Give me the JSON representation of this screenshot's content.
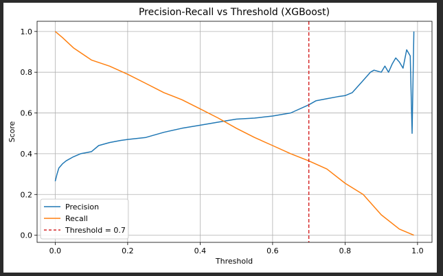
{
  "chart_data": {
    "type": "line",
    "title": "Precision-Recall vs Threshold (XGBoost)",
    "xlabel": "Threshold",
    "ylabel": "Score",
    "xlim": [
      -0.05,
      1.04
    ],
    "ylim": [
      -0.035,
      1.05
    ],
    "x_ticks": [
      0.0,
      0.2,
      0.4,
      0.6,
      0.8,
      1.0
    ],
    "x_tick_labels": [
      "0.0",
      "0.2",
      "0.4",
      "0.6",
      "0.8",
      "1.0"
    ],
    "y_ticks": [
      0.0,
      0.2,
      0.4,
      0.6,
      0.8,
      1.0
    ],
    "y_tick_labels": [
      "0.0",
      "0.2",
      "0.4",
      "0.6",
      "0.8",
      "1.0"
    ],
    "grid": true,
    "legend_position": "lower-left",
    "series": [
      {
        "name": "Precision",
        "color": "#1f77b4",
        "x": [
          0.0,
          0.005,
          0.01,
          0.02,
          0.03,
          0.05,
          0.07,
          0.1,
          0.12,
          0.15,
          0.18,
          0.2,
          0.25,
          0.3,
          0.35,
          0.4,
          0.45,
          0.5,
          0.55,
          0.6,
          0.65,
          0.7,
          0.72,
          0.75,
          0.78,
          0.8,
          0.82,
          0.85,
          0.87,
          0.88,
          0.9,
          0.91,
          0.92,
          0.93,
          0.94,
          0.95,
          0.96,
          0.97,
          0.98,
          0.985,
          0.99
        ],
        "y": [
          0.265,
          0.3,
          0.33,
          0.35,
          0.365,
          0.385,
          0.4,
          0.41,
          0.44,
          0.455,
          0.465,
          0.47,
          0.48,
          0.505,
          0.525,
          0.54,
          0.555,
          0.57,
          0.575,
          0.585,
          0.6,
          0.64,
          0.66,
          0.67,
          0.68,
          0.685,
          0.7,
          0.76,
          0.8,
          0.81,
          0.8,
          0.83,
          0.8,
          0.84,
          0.87,
          0.85,
          0.82,
          0.91,
          0.88,
          0.5,
          1.0
        ]
      },
      {
        "name": "Recall",
        "color": "#ff7f0e",
        "x": [
          0.0,
          0.02,
          0.05,
          0.1,
          0.15,
          0.2,
          0.25,
          0.3,
          0.35,
          0.4,
          0.45,
          0.5,
          0.55,
          0.6,
          0.65,
          0.7,
          0.75,
          0.8,
          0.85,
          0.9,
          0.95,
          0.99
        ],
        "y": [
          1.0,
          0.97,
          0.92,
          0.86,
          0.83,
          0.79,
          0.745,
          0.7,
          0.665,
          0.62,
          0.575,
          0.525,
          0.48,
          0.44,
          0.4,
          0.365,
          0.325,
          0.255,
          0.2,
          0.1,
          0.03,
          0.0
        ]
      }
    ],
    "vlines": [
      {
        "name": "Threshold = 0.7",
        "x": 0.7,
        "color": "#d62728",
        "style": "dashed"
      }
    ]
  }
}
